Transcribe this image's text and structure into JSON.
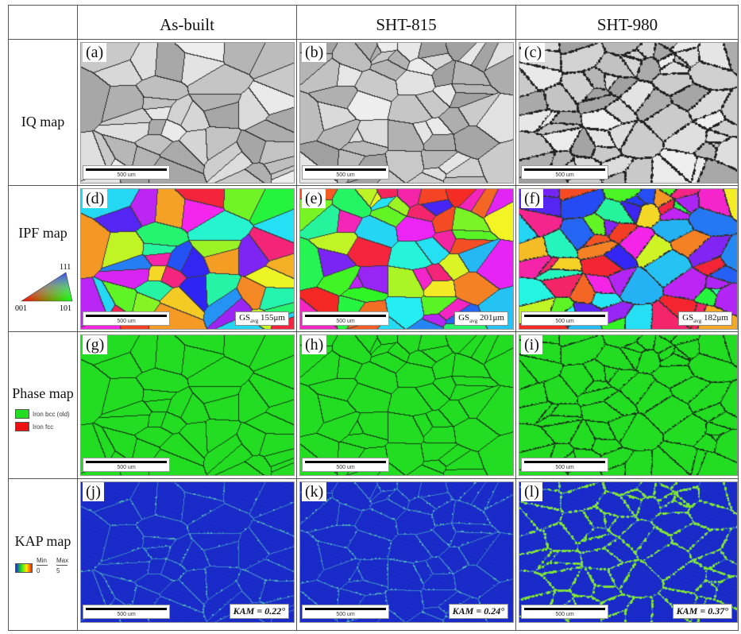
{
  "columns": [
    "As-built",
    "SHT-815",
    "SHT-980"
  ],
  "rows": [
    {
      "label": "IQ map",
      "panels": [
        "(a)",
        "(b)",
        "(c)"
      ]
    },
    {
      "label": "IPF map",
      "panels": [
        "(d)",
        "(e)",
        "(f)"
      ]
    },
    {
      "label": "Phase map",
      "panels": [
        "(g)",
        "(h)",
        "(i)"
      ]
    },
    {
      "label": "KAP map",
      "panels": [
        "(j)",
        "(k)",
        "(l)"
      ]
    }
  ],
  "scale_bar": "500 um",
  "ipf_legend": {
    "top": "111",
    "left": "001",
    "right": "101"
  },
  "phase_legend": [
    {
      "label": "Iron bcc (old)",
      "color": "#22dd22"
    },
    {
      "label": "Iron fcc",
      "color": "#ee1111"
    }
  ],
  "kap_legend": {
    "min_label": "Min",
    "max_label": "Max",
    "min_value": "0",
    "max_value": "5"
  },
  "grain_size": {
    "prefix": "GS",
    "sub": "avg",
    "values": [
      "155μm",
      "201μm",
      "182μm"
    ]
  },
  "kam": {
    "prefix": "KAM = ",
    "values": [
      "0.22°",
      "0.24°",
      "0.37°"
    ]
  },
  "colors": {
    "phase_green": "#22dd22",
    "kap_blue": "#1a2fc8",
    "kap_green": "#7fe23a",
    "boundary": "#1a1a1a"
  }
}
